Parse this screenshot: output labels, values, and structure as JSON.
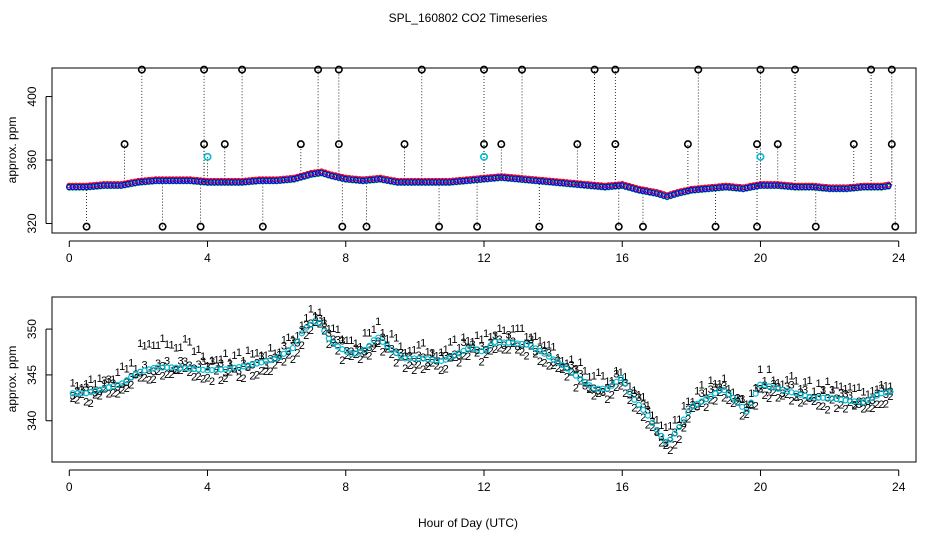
{
  "title": "SPL_160802  CO2 Timeseries",
  "xlabel": "Hour of Day (UTC)",
  "colors": {
    "raw_1": "#ff0000",
    "raw_2": "#00cc00",
    "raw_3": "#0000ff",
    "smoothed": "#00bcd4",
    "marker": "#000000"
  },
  "chart_data": [
    {
      "type": "scatter",
      "ylabel": "approx. ppm",
      "xlim": [
        -0.5,
        24.5
      ],
      "ylim": [
        314,
        418
      ],
      "xticks": [
        "0",
        "4",
        "8",
        "12",
        "16",
        "20",
        "24"
      ],
      "yticks": [
        "320",
        "360",
        "400"
      ],
      "baseline_anchor": [
        [
          0,
          343
        ],
        [
          0.5,
          343
        ],
        [
          1,
          344
        ],
        [
          1.5,
          344
        ],
        [
          2,
          346
        ],
        [
          2.5,
          347
        ],
        [
          3,
          347
        ],
        [
          3.5,
          347
        ],
        [
          4,
          346
        ],
        [
          4.5,
          346
        ],
        [
          5,
          346
        ],
        [
          5.5,
          347
        ],
        [
          6,
          347
        ],
        [
          6.5,
          348
        ],
        [
          7,
          351
        ],
        [
          7.3,
          352
        ],
        [
          7.6,
          350
        ],
        [
          8,
          348
        ],
        [
          8.5,
          347
        ],
        [
          9,
          348
        ],
        [
          9.5,
          346
        ],
        [
          10,
          346
        ],
        [
          10.5,
          346
        ],
        [
          11,
          346
        ],
        [
          11.5,
          347
        ],
        [
          12,
          348
        ],
        [
          12.5,
          349
        ],
        [
          13,
          348
        ],
        [
          13.5,
          347
        ],
        [
          14,
          346
        ],
        [
          14.5,
          345
        ],
        [
          15,
          344
        ],
        [
          15.5,
          343
        ],
        [
          16,
          344
        ],
        [
          16.5,
          341
        ],
        [
          17,
          339
        ],
        [
          17.3,
          337
        ],
        [
          17.6,
          339
        ],
        [
          18,
          341
        ],
        [
          18.5,
          342
        ],
        [
          19,
          343
        ],
        [
          19.5,
          342
        ],
        [
          20,
          344
        ],
        [
          20.5,
          344
        ],
        [
          21,
          343
        ],
        [
          21.5,
          343
        ],
        [
          22,
          342
        ],
        [
          22.5,
          342
        ],
        [
          23,
          343
        ],
        [
          23.5,
          343
        ],
        [
          23.8,
          344
        ]
      ],
      "high_flags": [
        [
          2.1,
          417
        ],
        [
          3.9,
          417
        ],
        [
          5.0,
          417
        ],
        [
          7.2,
          417
        ],
        [
          7.8,
          417
        ],
        [
          10.2,
          417
        ],
        [
          12.0,
          417
        ],
        [
          13.1,
          417
        ],
        [
          15.2,
          417
        ],
        [
          15.8,
          417
        ],
        [
          18.2,
          417
        ],
        [
          20.0,
          417
        ],
        [
          21.0,
          417
        ],
        [
          23.2,
          417
        ],
        [
          23.8,
          417
        ]
      ],
      "mid_flags": [
        [
          1.6,
          370
        ],
        [
          3.9,
          370
        ],
        [
          4.5,
          370
        ],
        [
          6.7,
          370
        ],
        [
          7.8,
          370
        ],
        [
          9.7,
          370
        ],
        [
          12.0,
          370
        ],
        [
          12.5,
          370
        ],
        [
          14.7,
          370
        ],
        [
          15.8,
          370
        ],
        [
          17.9,
          370
        ],
        [
          19.9,
          370
        ],
        [
          20.5,
          370
        ],
        [
          22.7,
          370
        ],
        [
          23.8,
          370
        ]
      ],
      "cyan_flags": [
        [
          4.0,
          362
        ],
        [
          12.0,
          362
        ],
        [
          20.0,
          362
        ]
      ],
      "low_flags": [
        [
          0.5,
          318
        ],
        [
          2.7,
          318
        ],
        [
          3.8,
          318
        ],
        [
          5.6,
          318
        ],
        [
          7.9,
          318
        ],
        [
          8.6,
          318
        ],
        [
          10.7,
          318
        ],
        [
          11.8,
          318
        ],
        [
          13.6,
          318
        ],
        [
          15.9,
          318
        ],
        [
          16.6,
          318
        ],
        [
          18.7,
          318
        ],
        [
          19.9,
          318
        ],
        [
          21.6,
          318
        ],
        [
          23.9,
          318
        ]
      ]
    },
    {
      "type": "scatter",
      "ylabel": "approx. ppm",
      "xlim": [
        -0.5,
        24.5
      ],
      "ylim": [
        335.5,
        353.5
      ],
      "xticks": [
        "0",
        "4",
        "8",
        "12",
        "16",
        "20",
        "24"
      ],
      "yticks": [
        "340",
        "345",
        "350"
      ],
      "series": [
        {
          "name": "1",
          "offset_ppm": 1.2
        },
        {
          "name": "2",
          "offset_ppm": -0.6
        },
        {
          "name": "3",
          "offset_ppm": 0.3
        }
      ],
      "baseline_anchor": [
        [
          0,
          343
        ],
        [
          0.5,
          343
        ],
        [
          1,
          343.5
        ],
        [
          1.5,
          344
        ],
        [
          2,
          345.3
        ],
        [
          2.5,
          345.8
        ],
        [
          3,
          345.8
        ],
        [
          3.5,
          345.7
        ],
        [
          4,
          345.5
        ],
        [
          4.5,
          345.6
        ],
        [
          5,
          345.9
        ],
        [
          5.5,
          346.3
        ],
        [
          6,
          346.8
        ],
        [
          6.5,
          348
        ],
        [
          6.8,
          350
        ],
        [
          7.2,
          351
        ],
        [
          7.5,
          349
        ],
        [
          7.8,
          348
        ],
        [
          8.2,
          347.2
        ],
        [
          8.6,
          347.8
        ],
        [
          8.9,
          349.2
        ],
        [
          9.3,
          347.8
        ],
        [
          9.7,
          346.8
        ],
        [
          10.2,
          346.8
        ],
        [
          10.8,
          346.5
        ],
        [
          11.2,
          347.2
        ],
        [
          11.6,
          348
        ],
        [
          12,
          347.5
        ],
        [
          12.3,
          348.6
        ],
        [
          12.8,
          348.5
        ],
        [
          13.3,
          348.3
        ],
        [
          13.8,
          347.2
        ],
        [
          14.3,
          346
        ],
        [
          14.8,
          344.5
        ],
        [
          15.2,
          343.5
        ],
        [
          15.6,
          343.5
        ],
        [
          16,
          344.8
        ],
        [
          16.3,
          342.5
        ],
        [
          16.7,
          340.8
        ],
        [
          17,
          339
        ],
        [
          17.3,
          337.5
        ],
        [
          17.6,
          339
        ],
        [
          18,
          341.5
        ],
        [
          18.5,
          342.5
        ],
        [
          18.9,
          343.5
        ],
        [
          19.3,
          342.2
        ],
        [
          19.6,
          341
        ],
        [
          20,
          344
        ],
        [
          20.5,
          343.5
        ],
        [
          21,
          343
        ],
        [
          21.5,
          342.5
        ],
        [
          22,
          342.5
        ],
        [
          22.5,
          342.2
        ],
        [
          23,
          342
        ],
        [
          23.5,
          343
        ],
        [
          23.8,
          343.2
        ]
      ]
    }
  ]
}
